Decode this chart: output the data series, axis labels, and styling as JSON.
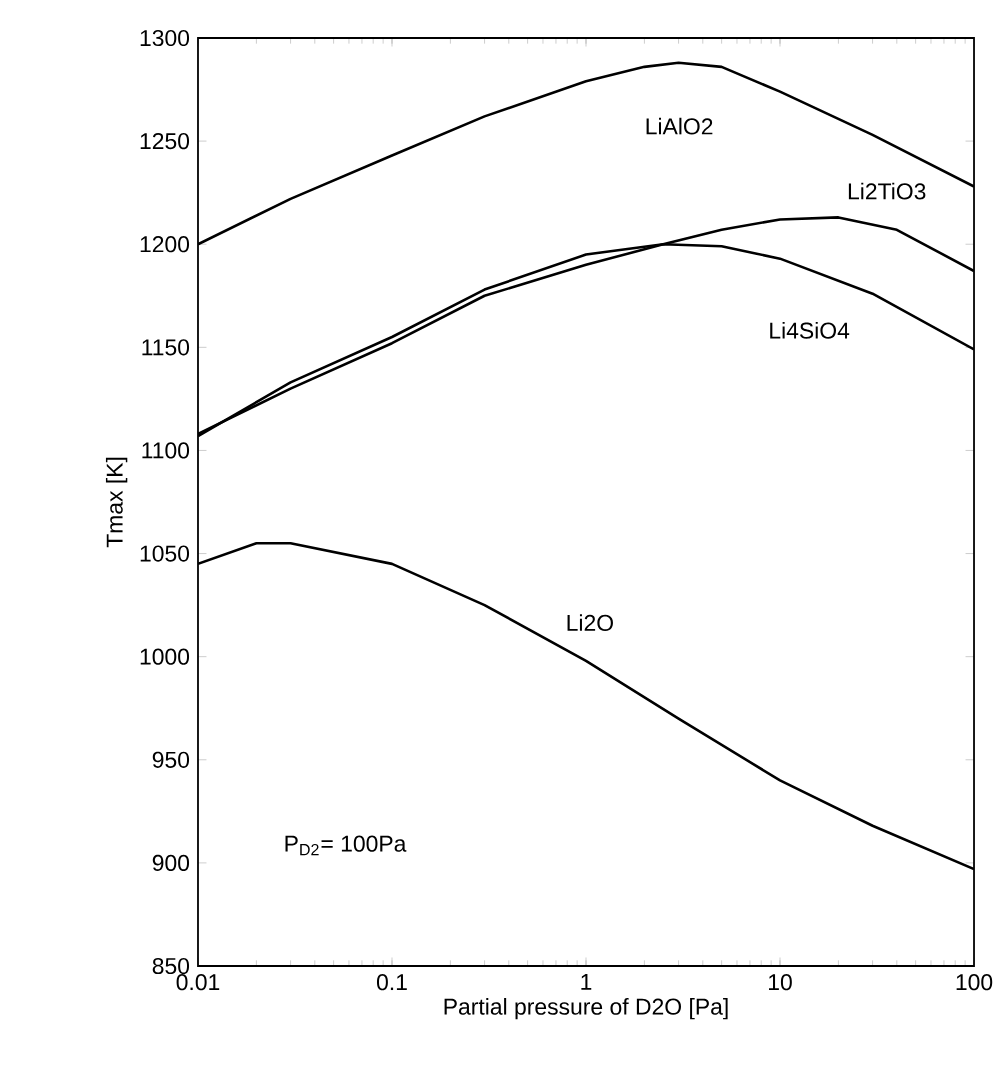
{
  "chart_data": {
    "type": "line",
    "xlabel": "Partial pressure of D2O [Pa]",
    "ylabel": "Tmax [K]",
    "log": "x",
    "legend": false,
    "grid": false,
    "marker": "none",
    "line_style": "solid",
    "xlim": [
      0.01,
      100
    ],
    "xticks": [
      0.01,
      0.1,
      1,
      10,
      100
    ],
    "ylim": [
      850,
      1300
    ],
    "yticks": [
      850,
      900,
      950,
      1000,
      1050,
      1100,
      1150,
      1200,
      1250,
      1300
    ],
    "series": [
      {
        "name": "LiAlO2",
        "color": "#000000",
        "x": [
          0.01,
          0.03,
          0.1,
          0.3,
          1,
          2,
          3,
          5,
          10,
          30,
          100
        ],
        "values": [
          1200,
          1222,
          1243,
          1262,
          1279,
          1286,
          1288,
          1286,
          1274,
          1253,
          1228
        ]
      },
      {
        "name": "Li2TiO3",
        "color": "#000000",
        "x": [
          0.01,
          0.03,
          0.1,
          0.3,
          1,
          2.5,
          5,
          10,
          20,
          40,
          100
        ],
        "values": [
          1108,
          1130,
          1152,
          1175,
          1190,
          1200,
          1207,
          1212,
          1213,
          1207,
          1187
        ]
      },
      {
        "name": "Li4SiO4",
        "color": "#000000",
        "x": [
          0.01,
          0.03,
          0.1,
          0.3,
          1,
          2.5,
          5,
          10,
          30,
          100
        ],
        "values": [
          1107,
          1133,
          1155,
          1178,
          1195,
          1200,
          1199,
          1193,
          1176,
          1149
        ]
      },
      {
        "name": "Li2O",
        "color": "#000000",
        "x": [
          0.01,
          0.02,
          0.03,
          0.1,
          0.3,
          1,
          3,
          10,
          30,
          100
        ],
        "values": [
          1045,
          1055,
          1055,
          1045,
          1025,
          998,
          970,
          940,
          918,
          897
        ]
      }
    ],
    "annotations": [
      "P$_{D2}$= 100Pa"
    ]
  }
}
